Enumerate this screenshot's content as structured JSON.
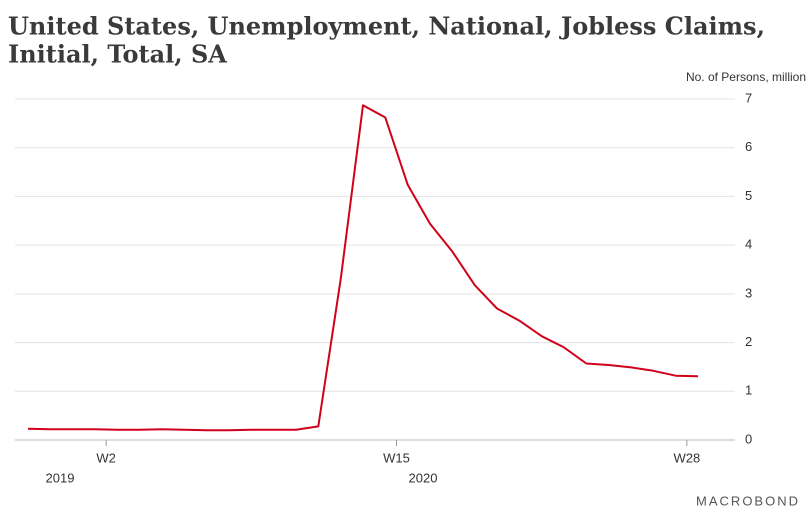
{
  "chart_data": {
    "type": "line",
    "title": "United States, Unemployment, National, Jobless Claims, Initial, Total, SA",
    "title_lines": [
      "United States, Unemployment, National, Jobless Claims,",
      "Initial, Total, SA"
    ],
    "y_axis_label": "No. of Persons, million",
    "categories": [
      null,
      null,
      null,
      null,
      "W2",
      null,
      null,
      null,
      null,
      null,
      null,
      null,
      null,
      null,
      null,
      null,
      null,
      "W15",
      null,
      null,
      null,
      null,
      null,
      null,
      null,
      null,
      null,
      null,
      null,
      null,
      "W28"
    ],
    "year_labels": [
      "2019",
      "2020"
    ],
    "series": [
      {
        "name": "Initial Jobless Claims",
        "color": "#d0021b",
        "values": [
          0.23,
          0.22,
          0.22,
          0.22,
          0.21,
          0.21,
          0.22,
          0.21,
          0.2,
          0.2,
          0.21,
          0.21,
          0.21,
          0.28,
          3.3,
          6.87,
          6.62,
          5.24,
          4.44,
          3.87,
          3.18,
          2.7,
          2.45,
          2.13,
          1.9,
          1.57,
          1.54,
          1.49,
          1.42,
          1.32,
          1.31
        ]
      }
    ],
    "ylim": [
      0,
      7
    ],
    "yticks": [
      0,
      1,
      2,
      3,
      4,
      5,
      6,
      7
    ],
    "grid": true,
    "source": "MACROBOND"
  }
}
